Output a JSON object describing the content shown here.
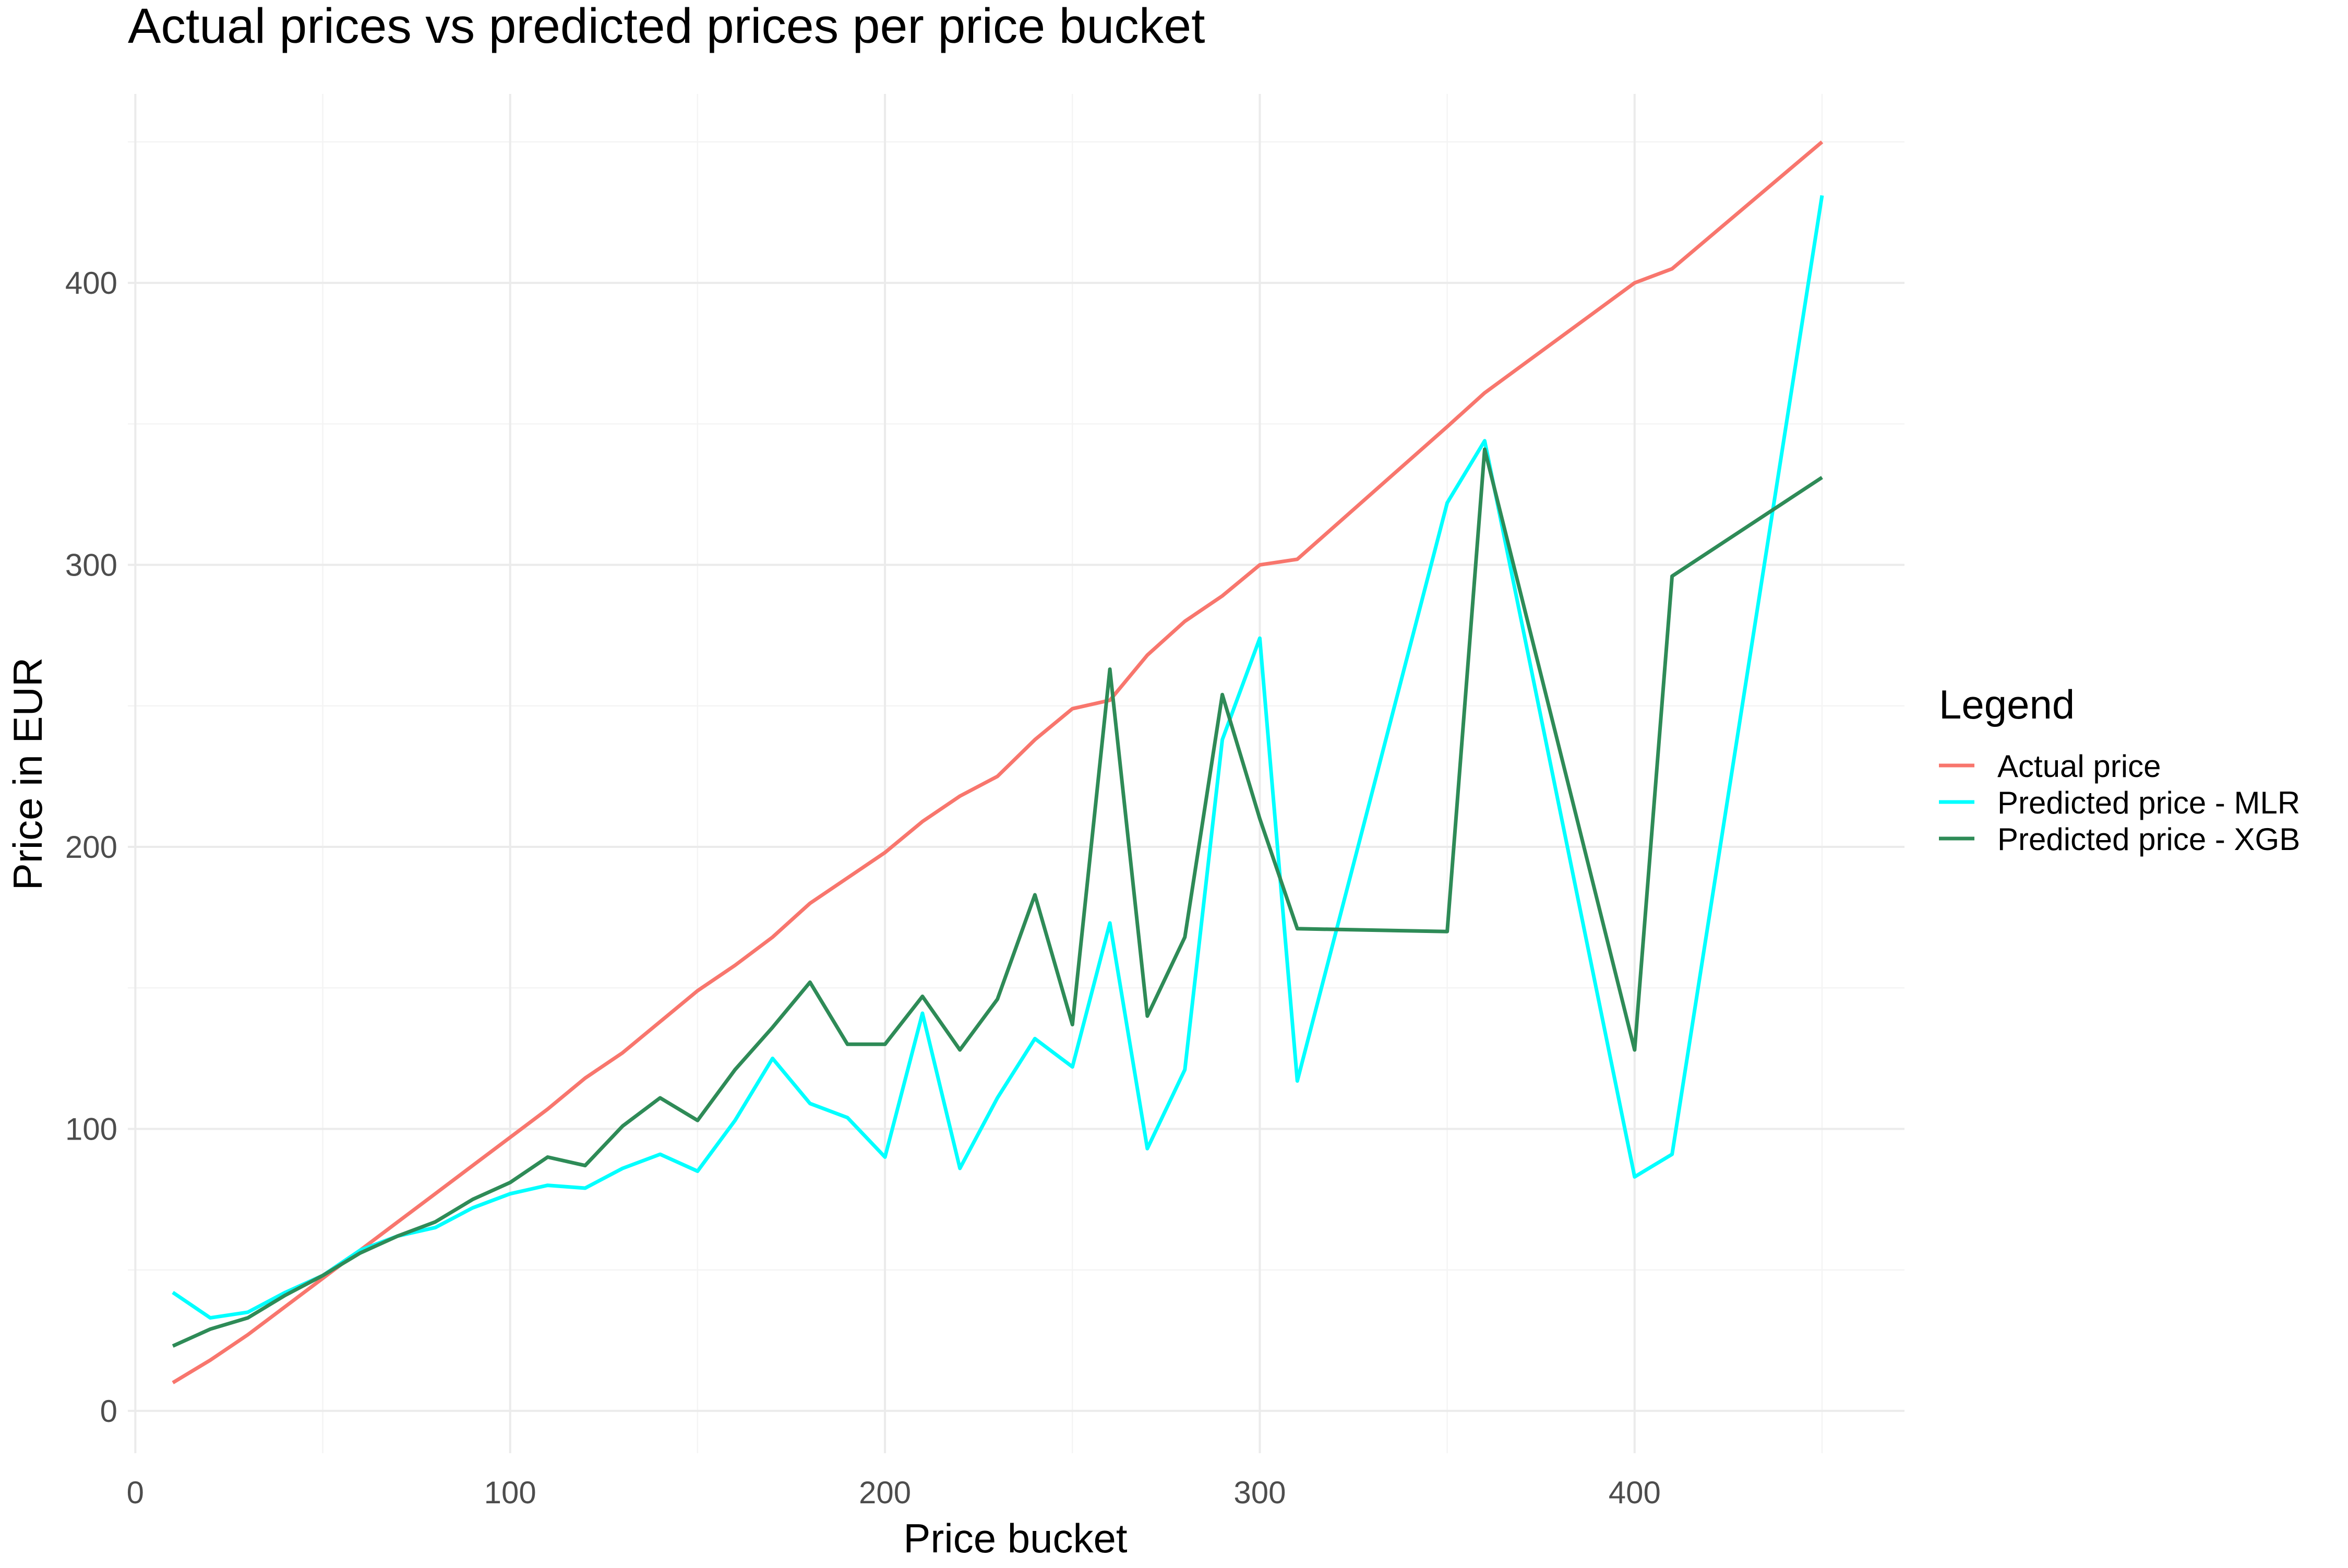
{
  "chart_data": {
    "type": "line",
    "title": "Actual prices vs predicted prices per price bucket",
    "xlabel": "Price bucket",
    "ylabel": "Price in EUR",
    "xlim": [
      -2,
      472
    ],
    "ylim": [
      -15,
      467
    ],
    "x_ticks": [
      0,
      100,
      200,
      300,
      400
    ],
    "y_ticks": [
      0,
      100,
      200,
      300,
      400
    ],
    "grid": true,
    "legend": {
      "title": "Legend",
      "position": "right"
    },
    "series": [
      {
        "name": "Actual price",
        "color": "#F8766D",
        "points": [
          [
            10,
            10
          ],
          [
            20,
            18
          ],
          [
            30,
            27
          ],
          [
            40,
            37
          ],
          [
            50,
            47
          ],
          [
            60,
            57
          ],
          [
            70,
            67
          ],
          [
            80,
            77
          ],
          [
            90,
            87
          ],
          [
            100,
            97
          ],
          [
            110,
            107
          ],
          [
            120,
            118
          ],
          [
            130,
            127
          ],
          [
            140,
            138
          ],
          [
            150,
            149
          ],
          [
            160,
            158
          ],
          [
            170,
            168
          ],
          [
            180,
            180
          ],
          [
            190,
            189
          ],
          [
            200,
            198
          ],
          [
            210,
            209
          ],
          [
            220,
            218
          ],
          [
            230,
            225
          ],
          [
            240,
            238
          ],
          [
            250,
            249
          ],
          [
            260,
            252
          ],
          [
            270,
            268
          ],
          [
            280,
            280
          ],
          [
            290,
            289
          ],
          [
            300,
            300
          ],
          [
            310,
            302
          ],
          [
            350,
            349
          ],
          [
            360,
            361
          ],
          [
            400,
            400
          ],
          [
            410,
            405
          ],
          [
            450,
            450
          ]
        ]
      },
      {
        "name": "Predicted price - MLR",
        "color": "#00FFFF",
        "points": [
          [
            10,
            42
          ],
          [
            20,
            33
          ],
          [
            30,
            35
          ],
          [
            40,
            42
          ],
          [
            50,
            48
          ],
          [
            60,
            57
          ],
          [
            70,
            62
          ],
          [
            80,
            65
          ],
          [
            90,
            72
          ],
          [
            100,
            77
          ],
          [
            110,
            80
          ],
          [
            120,
            79
          ],
          [
            130,
            86
          ],
          [
            140,
            91
          ],
          [
            150,
            85
          ],
          [
            160,
            103
          ],
          [
            170,
            125
          ],
          [
            180,
            109
          ],
          [
            190,
            104
          ],
          [
            200,
            90
          ],
          [
            210,
            141
          ],
          [
            220,
            86
          ],
          [
            230,
            111
          ],
          [
            240,
            132
          ],
          [
            250,
            122
          ],
          [
            260,
            173
          ],
          [
            270,
            93
          ],
          [
            280,
            121
          ],
          [
            290,
            238
          ],
          [
            300,
            274
          ],
          [
            310,
            117
          ],
          [
            350,
            322
          ],
          [
            360,
            344
          ],
          [
            400,
            83
          ],
          [
            410,
            91
          ],
          [
            450,
            431
          ]
        ]
      },
      {
        "name": "Predicted price - XGB",
        "color": "#2E8B57",
        "points": [
          [
            10,
            23
          ],
          [
            20,
            29
          ],
          [
            30,
            33
          ],
          [
            40,
            41
          ],
          [
            50,
            48
          ],
          [
            60,
            56
          ],
          [
            70,
            62
          ],
          [
            80,
            67
          ],
          [
            90,
            75
          ],
          [
            100,
            81
          ],
          [
            110,
            90
          ],
          [
            120,
            87
          ],
          [
            130,
            101
          ],
          [
            140,
            111
          ],
          [
            150,
            103
          ],
          [
            160,
            121
          ],
          [
            170,
            136
          ],
          [
            180,
            152
          ],
          [
            190,
            130
          ],
          [
            200,
            130
          ],
          [
            210,
            147
          ],
          [
            220,
            128
          ],
          [
            230,
            146
          ],
          [
            240,
            183
          ],
          [
            250,
            137
          ],
          [
            260,
            263
          ],
          [
            270,
            140
          ],
          [
            280,
            168
          ],
          [
            290,
            254
          ],
          [
            300,
            210
          ],
          [
            310,
            171
          ],
          [
            350,
            170
          ],
          [
            360,
            341
          ],
          [
            400,
            128
          ],
          [
            410,
            296
          ],
          [
            450,
            331
          ]
        ]
      }
    ]
  }
}
